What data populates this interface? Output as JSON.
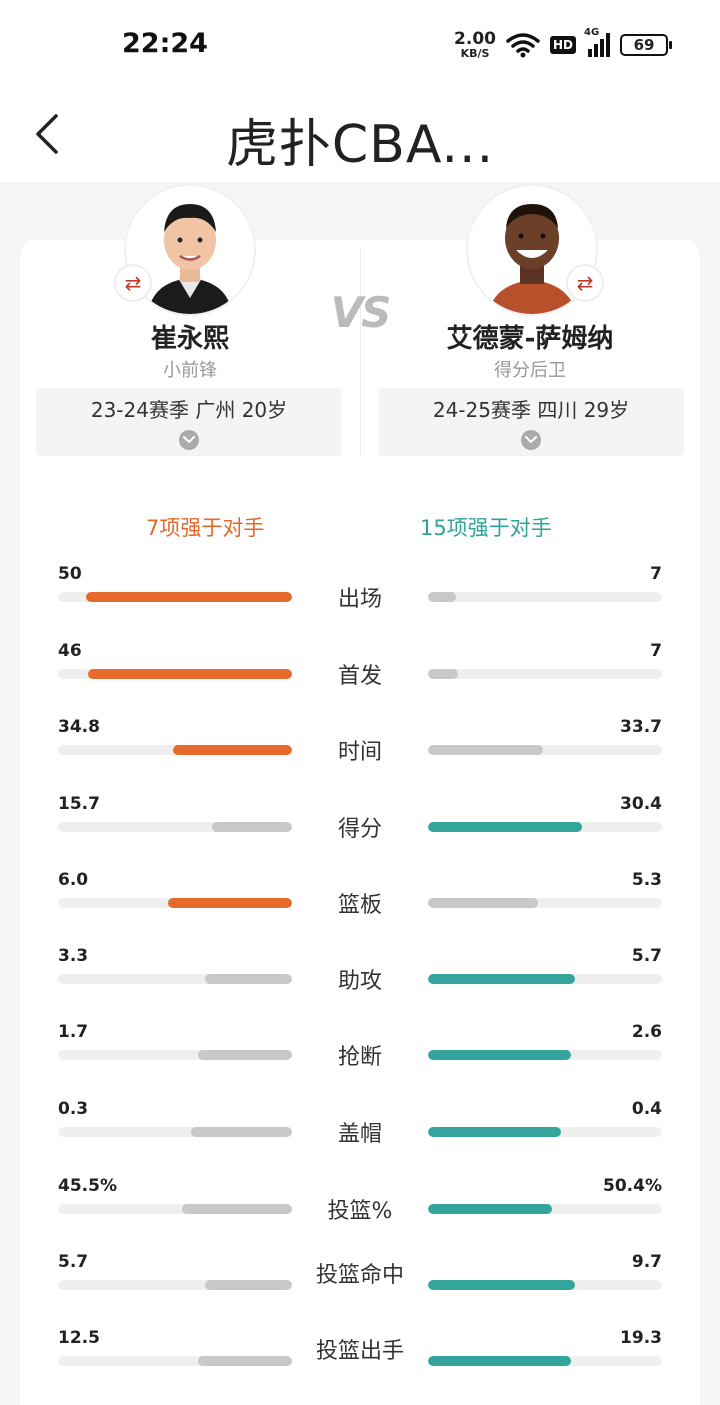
{
  "status_bar": {
    "time": "22:24",
    "net_speed": "2.00",
    "net_unit": "KB/S",
    "hd": "HD",
    "network": "4G",
    "battery": "69"
  },
  "header": {
    "title": "虎扑CBA..."
  },
  "compare": {
    "vs": "VS",
    "left_player": {
      "name": "崔永熙",
      "position": "小前锋",
      "season": "23-24赛季 广州 20岁"
    },
    "right_player": {
      "name": "艾德蒙-萨姆纳",
      "position": "得分后卫",
      "season": "24-25赛季 四川 29岁"
    },
    "summary_left": "7项强于对手",
    "summary_right": "15项强于对手"
  },
  "colors": {
    "left_win": "#e8692c",
    "right_win": "#34a59c",
    "lose": "#c8c8c8",
    "track": "#efefef"
  },
  "stats": [
    {
      "label": "出场",
      "left": "50",
      "right": "7",
      "left_frac": 0.88,
      "right_frac": 0.12,
      "winner": "left"
    },
    {
      "label": "首发",
      "left": "46",
      "right": "7",
      "left_frac": 0.87,
      "right_frac": 0.13,
      "winner": "left"
    },
    {
      "label": "时间",
      "left": "34.8",
      "right": "33.7",
      "left_frac": 0.51,
      "right_frac": 0.49,
      "winner": "left"
    },
    {
      "label": "得分",
      "left": "15.7",
      "right": "30.4",
      "left_frac": 0.34,
      "right_frac": 0.66,
      "winner": "right"
    },
    {
      "label": "篮板",
      "left": "6.0",
      "right": "5.3",
      "left_frac": 0.53,
      "right_frac": 0.47,
      "winner": "left"
    },
    {
      "label": "助攻",
      "left": "3.3",
      "right": "5.7",
      "left_frac": 0.37,
      "right_frac": 0.63,
      "winner": "right"
    },
    {
      "label": "抢断",
      "left": "1.7",
      "right": "2.6",
      "left_frac": 0.4,
      "right_frac": 0.61,
      "winner": "right"
    },
    {
      "label": "盖帽",
      "left": "0.3",
      "right": "0.4",
      "left_frac": 0.43,
      "right_frac": 0.57,
      "winner": "right"
    },
    {
      "label": "投篮%",
      "left": "45.5%",
      "right": "50.4%",
      "left_frac": 0.47,
      "right_frac": 0.53,
      "winner": "right"
    },
    {
      "label": "投篮命中",
      "left": "5.7",
      "right": "9.7",
      "left_frac": 0.37,
      "right_frac": 0.63,
      "winner": "right"
    },
    {
      "label": "投篮出手",
      "left": "12.5",
      "right": "19.3",
      "left_frac": 0.4,
      "right_frac": 0.61,
      "winner": "right"
    }
  ]
}
